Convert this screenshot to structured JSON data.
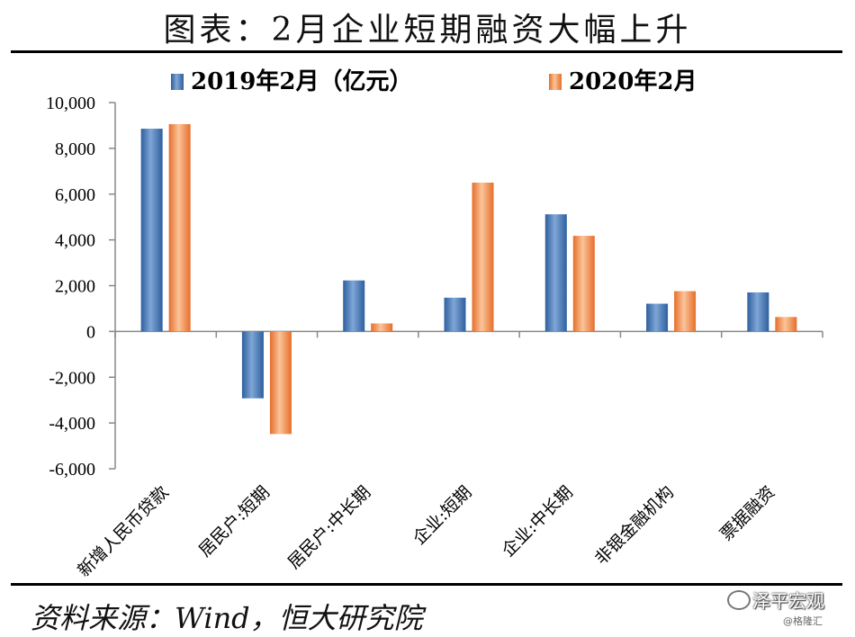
{
  "title": "图表：2月企业短期融资大幅上升",
  "source": "资料来源：Wind，恒大研究院",
  "watermark": {
    "name": "泽平宏观",
    "handle": "@格隆汇"
  },
  "colors": {
    "series_2019": "#4A7EBB",
    "series_2020": "#F59A5A"
  },
  "chart_data": {
    "type": "bar",
    "categories": [
      "新增人民币贷款",
      "居民户:短期",
      "居民户:中长期",
      "企业:短期",
      "企业:中长期",
      "非银金融机构",
      "票据融资"
    ],
    "series": [
      {
        "name": "2019年2月（亿元）",
        "values": [
          8858,
          -2922,
          2228,
          1474,
          5119,
          1212,
          1705
        ]
      },
      {
        "name": "2020年2月",
        "values": [
          9057,
          -4482,
          349,
          6501,
          4178,
          1760,
          631
        ]
      }
    ],
    "ylim": [
      -6000,
      10000
    ],
    "yticks": [
      10000,
      8000,
      6000,
      4000,
      2000,
      0,
      -2000,
      -4000,
      -6000
    ],
    "ytick_labels": [
      "10,000",
      "8,000",
      "6,000",
      "4,000",
      "2,000",
      "0",
      "-2,000",
      "-4,000",
      "-6,000"
    ],
    "legend_position": "top",
    "grid": false
  }
}
